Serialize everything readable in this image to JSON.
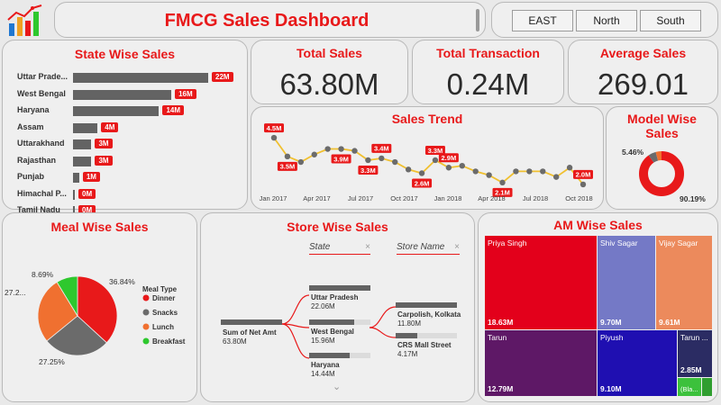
{
  "header": {
    "title": "FMCG Sales Dashboard"
  },
  "regions": [
    "EAST",
    "North",
    "South"
  ],
  "state_wise": {
    "title": "State Wise Sales",
    "items": [
      {
        "label": "Uttar Prade...",
        "value": 22,
        "badge": "22M"
      },
      {
        "label": "West Bengal",
        "value": 16,
        "badge": "16M"
      },
      {
        "label": "Haryana",
        "value": 14,
        "badge": "14M"
      },
      {
        "label": "Assam",
        "value": 4,
        "badge": "4M"
      },
      {
        "label": "Uttarakhand",
        "value": 3,
        "badge": "3M"
      },
      {
        "label": "Rajasthan",
        "value": 3,
        "badge": "3M"
      },
      {
        "label": "Punjab",
        "value": 1,
        "badge": "1M"
      },
      {
        "label": "Himachal P...",
        "value": 0.2,
        "badge": "0M"
      },
      {
        "label": "Tamil Nadu",
        "value": 0.05,
        "badge": "0M"
      }
    ]
  },
  "kpis": [
    {
      "title": "Total Sales",
      "value": "63.80M"
    },
    {
      "title": "Total Transaction",
      "value": "0.24M"
    },
    {
      "title": "Average Sales",
      "value": "269.01"
    }
  ],
  "sales_trend": {
    "title": "Sales Trend",
    "x_ticks": [
      "Jan 2017",
      "Apr 2017",
      "Jul 2017",
      "Oct 2017",
      "Jan 2018",
      "Apr 2018",
      "Jul 2018",
      "Oct 2018"
    ],
    "values": [
      4.5,
      3.5,
      3.2,
      3.6,
      3.9,
      3.9,
      3.8,
      3.3,
      3.4,
      3.2,
      2.8,
      2.6,
      3.3,
      2.9,
      3.0,
      2.7,
      2.5,
      2.1,
      2.7,
      2.7,
      2.7,
      2.4,
      2.9,
      2.0
    ],
    "labels": [
      {
        "index": 0,
        "text": "4.5M",
        "pos": "above"
      },
      {
        "index": 1,
        "text": "3.5M",
        "pos": "below"
      },
      {
        "index": 5,
        "text": "3.9M",
        "pos": "below"
      },
      {
        "index": 7,
        "text": "3.3M",
        "pos": "below"
      },
      {
        "index": 8,
        "text": "3.4M",
        "pos": "above"
      },
      {
        "index": 11,
        "text": "2.6M",
        "pos": "below"
      },
      {
        "index": 12,
        "text": "3.3M",
        "pos": "above"
      },
      {
        "index": 13,
        "text": "2.9M",
        "pos": "above"
      },
      {
        "index": 17,
        "text": "2.1M",
        "pos": "below"
      },
      {
        "index": 23,
        "text": "2.0M",
        "pos": "above"
      }
    ]
  },
  "model_wise": {
    "title": "Model Wise Sales",
    "slices": [
      {
        "pct": 90.19,
        "label": "90.19%",
        "color": "#e8191a"
      },
      {
        "pct": 5.46,
        "label": "5.46%",
        "color": "#6b6b6b"
      },
      {
        "pct": 4.35,
        "label": "",
        "color": "#f07030"
      }
    ]
  },
  "meal_wise": {
    "title": "Meal Wise Sales",
    "legend_title": "Meal Type",
    "slices": [
      {
        "name": "Dinner",
        "pct": 36.84,
        "label": "36.84%",
        "color": "#e8191a"
      },
      {
        "name": "Snacks",
        "pct": 27.25,
        "label": "27.25%",
        "color": "#6b6b6b"
      },
      {
        "name": "Lunch",
        "pct": 27.22,
        "label": "27.2...",
        "color": "#f07030"
      },
      {
        "name": "Breakfast",
        "pct": 8.69,
        "label": "8.69%",
        "color": "#2ec82e"
      }
    ]
  },
  "store_wise": {
    "title": "Store Wise Sales",
    "slicers": [
      "State",
      "Store Name"
    ],
    "root": {
      "name": "Sum of Net Amt",
      "value": "63.80M"
    },
    "level1": [
      {
        "name": "Uttar Pradesh",
        "value": "22.06M"
      },
      {
        "name": "West Bengal",
        "value": "15.96M"
      },
      {
        "name": "Haryana",
        "value": "14.44M"
      }
    ],
    "level2": [
      {
        "name": "Carpolish, Kolkata",
        "value": "11.80M"
      },
      {
        "name": "CRS Mall Street",
        "value": "4.17M"
      }
    ]
  },
  "am_wise": {
    "title": "AM Wise Sales",
    "cells": [
      {
        "name": "Priya Singh",
        "value": "18.63M",
        "color": "#e3001b"
      },
      {
        "name": "Shiv Sagar",
        "value": "9.70M",
        "color": "#7479c6"
      },
      {
        "name": "Vijay Sagar",
        "value": "9.61M",
        "color": "#ec8a5c"
      },
      {
        "name": "Tarun",
        "value": "12.79M",
        "color": "#5e1866"
      },
      {
        "name": "Piyush",
        "value": "9.10M",
        "color": "#1f0fb1"
      },
      {
        "name": "Tarun ...",
        "value": "2.85M",
        "color": "#2b2c63"
      },
      {
        "name": "",
        "value": "(Bla...",
        "color": "#3cc13c"
      },
      {
        "name": "",
        "value": "",
        "color": "#2f9e2f"
      }
    ]
  }
}
